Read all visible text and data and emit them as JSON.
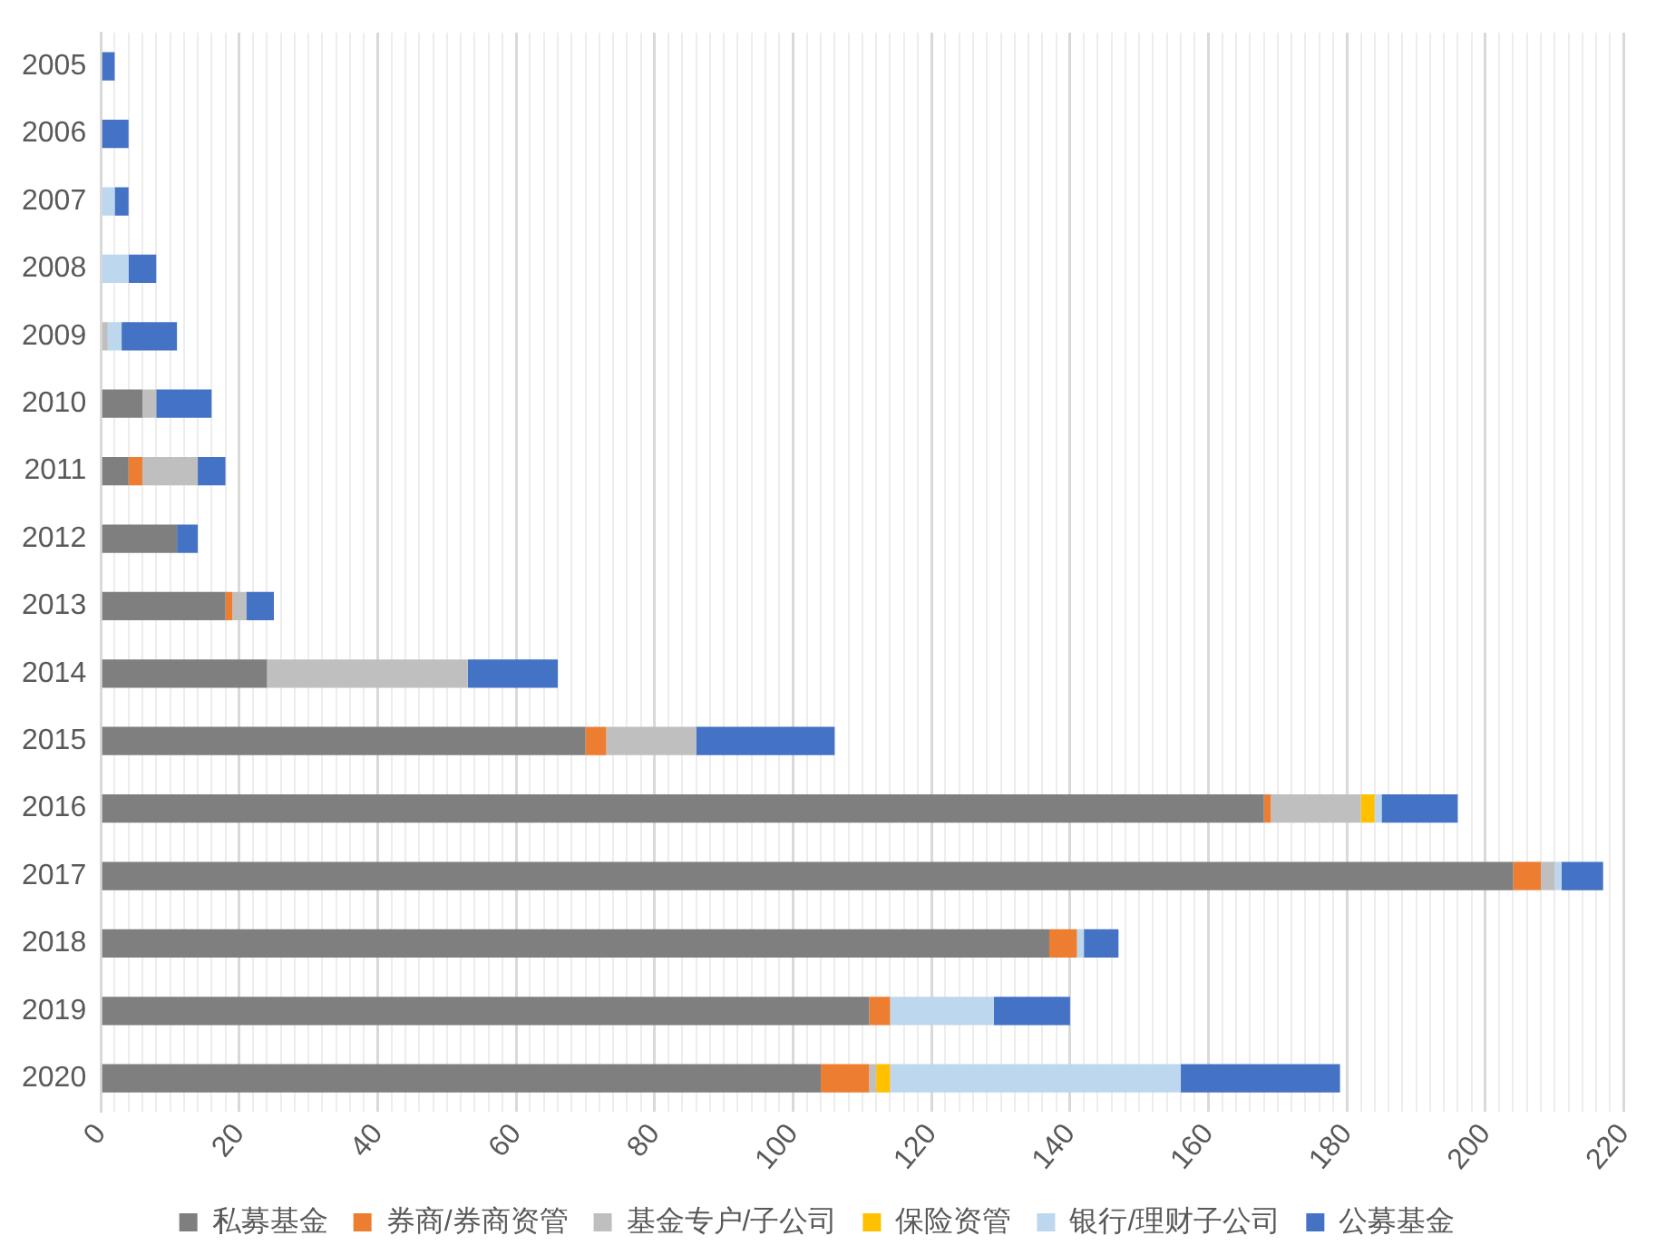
{
  "chart_data": {
    "type": "bar",
    "orientation": "horizontal",
    "stacked": true,
    "categories": [
      "2005",
      "2006",
      "2007",
      "2008",
      "2009",
      "2010",
      "2011",
      "2012",
      "2013",
      "2014",
      "2015",
      "2016",
      "2017",
      "2018",
      "2019",
      "2020"
    ],
    "series": [
      {
        "name": "私募基金",
        "color": "#7f7f7f",
        "values": [
          0,
          0,
          0,
          0,
          0,
          6,
          4,
          11,
          18,
          24,
          70,
          168,
          204,
          137,
          111,
          104
        ]
      },
      {
        "name": "券商/券商资管",
        "color": "#ed7d31",
        "values": [
          0,
          0,
          0,
          0,
          0,
          0,
          2,
          0,
          1,
          0,
          3,
          1,
          4,
          4,
          3,
          7
        ]
      },
      {
        "name": "基金专户/子公司",
        "color": "#bfbfbf",
        "values": [
          0,
          0,
          0,
          0,
          1,
          2,
          8,
          0,
          2,
          29,
          13,
          13,
          2,
          0,
          0,
          1
        ]
      },
      {
        "name": "保险资管",
        "color": "#ffc000",
        "values": [
          0,
          0,
          0,
          0,
          0,
          0,
          0,
          0,
          0,
          0,
          0,
          2,
          0,
          0,
          0,
          2
        ]
      },
      {
        "name": "银行/理财子公司",
        "color": "#bdd7ee",
        "values": [
          0,
          0,
          2,
          4,
          2,
          0,
          0,
          0,
          0,
          0,
          0,
          1,
          1,
          1,
          15,
          42
        ]
      },
      {
        "name": "公募基金",
        "color": "#4472c4",
        "values": [
          2,
          4,
          2,
          4,
          8,
          8,
          4,
          3,
          4,
          13,
          20,
          11,
          6,
          5,
          11,
          23
        ]
      }
    ],
    "xlim": [
      0,
      220
    ],
    "xticks": [
      0,
      {
        "value": 2,
        "label": null
      },
      {
        "value": 4,
        "label": null
      },
      {
        "value": 6,
        "label": null
      },
      {
        "value": 8,
        "label": null
      },
      {
        "value": 10,
        "label": null
      },
      {
        "value": 12,
        "label": null
      },
      {
        "value": 14,
        "label": null
      },
      {
        "value": 16,
        "label": null
      },
      {
        "value": 18,
        "label": null
      },
      20,
      {
        "value": 22,
        "label": null
      },
      {
        "value": 24,
        "label": null
      },
      {
        "value": 26,
        "label": null
      },
      {
        "value": 28,
        "label": null
      },
      {
        "value": 30,
        "label": null
      },
      {
        "value": 32,
        "label": null
      },
      {
        "value": 34,
        "label": null
      },
      {
        "value": 36,
        "label": null
      },
      {
        "value": 38,
        "label": null
      },
      40,
      {
        "value": 42,
        "label": null
      },
      {
        "value": 44,
        "label": null
      },
      {
        "value": 46,
        "label": null
      },
      {
        "value": 48,
        "label": null
      },
      {
        "value": 50,
        "label": null
      },
      {
        "value": 52,
        "label": null
      },
      {
        "value": 54,
        "label": null
      },
      {
        "value": 56,
        "label": null
      },
      {
        "value": 58,
        "label": null
      },
      60,
      {
        "value": 62,
        "label": null
      },
      {
        "value": 64,
        "label": null
      },
      {
        "value": 66,
        "label": null
      },
      {
        "value": 68,
        "label": null
      },
      {
        "value": 70,
        "label": null
      },
      {
        "value": 72,
        "label": null
      },
      {
        "value": 74,
        "label": null
      },
      {
        "value": 76,
        "label": null
      },
      {
        "value": 78,
        "label": null
      },
      80,
      {
        "value": 82,
        "label": null
      },
      {
        "value": 84,
        "label": null
      },
      {
        "value": 86,
        "label": null
      },
      {
        "value": 88,
        "label": null
      },
      {
        "value": 90,
        "label": null
      },
      {
        "value": 92,
        "label": null
      },
      {
        "value": 94,
        "label": null
      },
      {
        "value": 96,
        "label": null
      },
      {
        "value": 98,
        "label": null
      },
      100,
      {
        "value": 102,
        "label": null
      },
      {
        "value": 104,
        "label": null
      },
      {
        "value": 106,
        "label": null
      },
      {
        "value": 108,
        "label": null
      },
      {
        "value": 110,
        "label": null
      },
      {
        "value": 112,
        "label": null
      },
      {
        "value": 114,
        "label": null
      },
      {
        "value": 116,
        "label": null
      },
      {
        "value": 118,
        "label": null
      },
      120,
      {
        "value": 122,
        "label": null
      },
      {
        "value": 124,
        "label": null
      },
      {
        "value": 126,
        "label": null
      },
      {
        "value": 128,
        "label": null
      },
      {
        "value": 130,
        "label": null
      },
      {
        "value": 132,
        "label": null
      },
      {
        "value": 134,
        "label": null
      },
      {
        "value": 136,
        "label": null
      },
      {
        "value": 138,
        "label": null
      },
      140,
      {
        "value": 142,
        "label": null
      },
      {
        "value": 144,
        "label": null
      },
      {
        "value": 146,
        "label": null
      },
      {
        "value": 148,
        "label": null
      },
      {
        "value": 150,
        "label": null
      },
      {
        "value": 152,
        "label": null
      },
      {
        "value": 154,
        "label": null
      },
      {
        "value": 156,
        "label": null
      },
      {
        "value": 158,
        "label": null
      },
      160,
      {
        "value": 162,
        "label": null
      },
      {
        "value": 164,
        "label": null
      },
      {
        "value": 166,
        "label": null
      },
      {
        "value": 168,
        "label": null
      },
      {
        "value": 170,
        "label": null
      },
      {
        "value": 172,
        "label": null
      },
      {
        "value": 174,
        "label": null
      },
      {
        "value": 176,
        "label": null
      },
      {
        "value": 178,
        "label": null
      },
      180,
      {
        "value": 182,
        "label": null
      },
      {
        "value": 184,
        "label": null
      },
      {
        "value": 186,
        "label": null
      },
      {
        "value": 188,
        "label": null
      },
      {
        "value": 190,
        "label": null
      },
      {
        "value": 192,
        "label": null
      },
      {
        "value": 194,
        "label": null
      },
      {
        "value": 196,
        "label": null
      },
      {
        "value": 198,
        "label": null
      },
      200,
      {
        "value": 202,
        "label": null
      },
      {
        "value": 204,
        "label": null
      },
      {
        "value": 206,
        "label": null
      },
      {
        "value": 208,
        "label": null
      },
      {
        "value": 210,
        "label": null
      },
      {
        "value": 212,
        "label": null
      },
      {
        "value": 214,
        "label": null
      },
      {
        "value": 216,
        "label": null
      },
      {
        "value": 218,
        "label": null
      },
      220
    ],
    "grid": "x",
    "legend": "bottom"
  }
}
